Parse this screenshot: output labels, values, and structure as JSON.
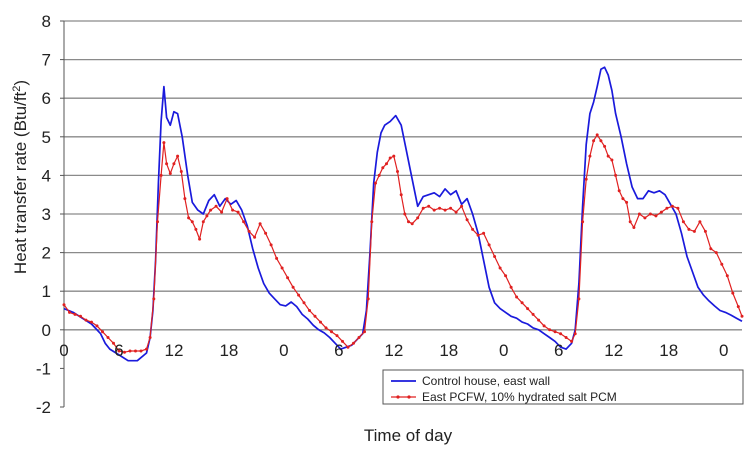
{
  "chart_data": {
    "type": "line",
    "title": "",
    "xlabel": "Time of day",
    "ylabel": "Heat transfer rate (Btu/ft²)",
    "ylabel_main": "Heat transfer rate (Btu/ft",
    "ylabel_sup": "2",
    "ylabel_end": ")",
    "xlim": [
      0,
      74
    ],
    "ylim": [
      -2,
      8
    ],
    "yticks": [
      "-2",
      "-1",
      "0",
      "1",
      "2",
      "3",
      "4",
      "5",
      "6",
      "7",
      "8"
    ],
    "xticks": [
      {
        "x": 0,
        "label": "0"
      },
      {
        "x": 6,
        "label": "6"
      },
      {
        "x": 12,
        "label": "12"
      },
      {
        "x": 18,
        "label": "18"
      },
      {
        "x": 24,
        "label": "0"
      },
      {
        "x": 30,
        "label": "6"
      },
      {
        "x": 36,
        "label": "12"
      },
      {
        "x": 42,
        "label": "18"
      },
      {
        "x": 48,
        "label": "0"
      },
      {
        "x": 54,
        "label": "6"
      },
      {
        "x": 60,
        "label": "12"
      },
      {
        "x": 66,
        "label": "18"
      },
      {
        "x": 72,
        "label": "0"
      }
    ],
    "grid": "horizontal",
    "legend_position": "bottom-right",
    "series": [
      {
        "name": "Control house, east wall",
        "color": "#1a1adc",
        "marker": "none",
        "points": [
          [
            0,
            0.55
          ],
          [
            1,
            0.45
          ],
          [
            2,
            0.3
          ],
          [
            3,
            0.15
          ],
          [
            4,
            -0.1
          ],
          [
            4.5,
            -0.35
          ],
          [
            5,
            -0.5
          ],
          [
            6,
            -0.65
          ],
          [
            7,
            -0.8
          ],
          [
            8,
            -0.8
          ],
          [
            9,
            -0.6
          ],
          [
            9.4,
            -0.2
          ],
          [
            9.7,
            0.5
          ],
          [
            10.0,
            1.8
          ],
          [
            10.3,
            3.8
          ],
          [
            10.6,
            5.4
          ],
          [
            10.9,
            6.3
          ],
          [
            11.2,
            5.5
          ],
          [
            11.6,
            5.3
          ],
          [
            12.0,
            5.65
          ],
          [
            12.4,
            5.6
          ],
          [
            12.9,
            5.0
          ],
          [
            13.5,
            4.0
          ],
          [
            14.0,
            3.3
          ],
          [
            14.6,
            3.1
          ],
          [
            15.2,
            3.0
          ],
          [
            15.8,
            3.35
          ],
          [
            16.4,
            3.5
          ],
          [
            17.0,
            3.2
          ],
          [
            17.6,
            3.4
          ],
          [
            18.2,
            3.25
          ],
          [
            18.8,
            3.35
          ],
          [
            19.4,
            3.1
          ],
          [
            20.0,
            2.7
          ],
          [
            20.6,
            2.1
          ],
          [
            21.2,
            1.6
          ],
          [
            21.8,
            1.2
          ],
          [
            22.4,
            0.95
          ],
          [
            23.0,
            0.8
          ],
          [
            23.6,
            0.65
          ],
          [
            24.2,
            0.62
          ],
          [
            24.8,
            0.72
          ],
          [
            25.4,
            0.6
          ],
          [
            26.0,
            0.4
          ],
          [
            26.6,
            0.28
          ],
          [
            27.2,
            0.12
          ],
          [
            27.8,
            0.0
          ],
          [
            28.4,
            -0.08
          ],
          [
            29.0,
            -0.2
          ],
          [
            29.6,
            -0.35
          ],
          [
            30.2,
            -0.5
          ],
          [
            30.8,
            -0.45
          ],
          [
            31.4,
            -0.4
          ],
          [
            32.0,
            -0.25
          ],
          [
            32.6,
            -0.1
          ],
          [
            33.0,
            0.5
          ],
          [
            33.4,
            2.0
          ],
          [
            33.8,
            3.8
          ],
          [
            34.2,
            4.6
          ],
          [
            34.6,
            5.1
          ],
          [
            35.0,
            5.3
          ],
          [
            35.6,
            5.4
          ],
          [
            36.2,
            5.55
          ],
          [
            36.8,
            5.3
          ],
          [
            37.4,
            4.6
          ],
          [
            38.0,
            3.9
          ],
          [
            38.6,
            3.2
          ],
          [
            39.2,
            3.45
          ],
          [
            39.8,
            3.5
          ],
          [
            40.4,
            3.55
          ],
          [
            41.0,
            3.45
          ],
          [
            41.6,
            3.65
          ],
          [
            42.2,
            3.5
          ],
          [
            42.8,
            3.6
          ],
          [
            43.4,
            3.25
          ],
          [
            44.0,
            3.4
          ],
          [
            44.6,
            3.0
          ],
          [
            45.2,
            2.5
          ],
          [
            45.8,
            1.8
          ],
          [
            46.4,
            1.1
          ],
          [
            47.0,
            0.7
          ],
          [
            47.6,
            0.55
          ],
          [
            48.2,
            0.45
          ],
          [
            48.8,
            0.35
          ],
          [
            49.4,
            0.3
          ],
          [
            50.0,
            0.2
          ],
          [
            50.6,
            0.15
          ],
          [
            51.2,
            0.05
          ],
          [
            51.8,
            0.0
          ],
          [
            52.4,
            -0.1
          ],
          [
            53.0,
            -0.2
          ],
          [
            53.6,
            -0.3
          ],
          [
            54.2,
            -0.45
          ],
          [
            54.8,
            -0.5
          ],
          [
            55.4,
            -0.35
          ],
          [
            55.8,
            0.0
          ],
          [
            56.2,
            1.2
          ],
          [
            56.6,
            3.2
          ],
          [
            57.0,
            4.8
          ],
          [
            57.4,
            5.6
          ],
          [
            57.8,
            5.9
          ],
          [
            58.2,
            6.3
          ],
          [
            58.6,
            6.75
          ],
          [
            59.0,
            6.8
          ],
          [
            59.4,
            6.6
          ],
          [
            59.8,
            6.2
          ],
          [
            60.2,
            5.6
          ],
          [
            60.8,
            5.0
          ],
          [
            61.4,
            4.3
          ],
          [
            62.0,
            3.7
          ],
          [
            62.6,
            3.4
          ],
          [
            63.2,
            3.4
          ],
          [
            63.8,
            3.6
          ],
          [
            64.4,
            3.55
          ],
          [
            65.0,
            3.6
          ],
          [
            65.6,
            3.5
          ],
          [
            66.2,
            3.25
          ],
          [
            66.8,
            3.0
          ],
          [
            67.4,
            2.5
          ],
          [
            68.0,
            1.9
          ],
          [
            68.6,
            1.5
          ],
          [
            69.2,
            1.1
          ],
          [
            69.8,
            0.9
          ],
          [
            70.4,
            0.75
          ],
          [
            71.0,
            0.62
          ],
          [
            71.6,
            0.5
          ],
          [
            72.2,
            0.45
          ],
          [
            72.8,
            0.38
          ],
          [
            73.4,
            0.3
          ],
          [
            74.0,
            0.22
          ]
        ]
      },
      {
        "name": "East PCFW, 10% hydrated salt PCM",
        "color": "#e02020",
        "marker": "dot",
        "points": [
          [
            0,
            0.65
          ],
          [
            0.6,
            0.45
          ],
          [
            1.2,
            0.4
          ],
          [
            1.8,
            0.35
          ],
          [
            2.4,
            0.25
          ],
          [
            3.0,
            0.2
          ],
          [
            3.6,
            0.1
          ],
          [
            4.2,
            -0.05
          ],
          [
            4.8,
            -0.2
          ],
          [
            5.4,
            -0.35
          ],
          [
            6.0,
            -0.55
          ],
          [
            6.6,
            -0.58
          ],
          [
            7.2,
            -0.55
          ],
          [
            7.8,
            -0.55
          ],
          [
            8.4,
            -0.55
          ],
          [
            9.0,
            -0.5
          ],
          [
            9.4,
            -0.2
          ],
          [
            9.8,
            0.8
          ],
          [
            10.2,
            2.8
          ],
          [
            10.6,
            4.0
          ],
          [
            10.9,
            4.85
          ],
          [
            11.2,
            4.3
          ],
          [
            11.6,
            4.05
          ],
          [
            12.0,
            4.3
          ],
          [
            12.4,
            4.5
          ],
          [
            12.8,
            4.1
          ],
          [
            13.2,
            3.4
          ],
          [
            13.6,
            2.9
          ],
          [
            14.0,
            2.8
          ],
          [
            14.4,
            2.6
          ],
          [
            14.8,
            2.35
          ],
          [
            15.2,
            2.8
          ],
          [
            15.6,
            2.95
          ],
          [
            16.0,
            3.1
          ],
          [
            16.6,
            3.2
          ],
          [
            17.2,
            3.05
          ],
          [
            17.8,
            3.4
          ],
          [
            18.4,
            3.1
          ],
          [
            19.0,
            3.05
          ],
          [
            19.6,
            2.8
          ],
          [
            20.2,
            2.55
          ],
          [
            20.8,
            2.4
          ],
          [
            21.4,
            2.75
          ],
          [
            22.0,
            2.5
          ],
          [
            22.6,
            2.2
          ],
          [
            23.2,
            1.85
          ],
          [
            23.8,
            1.6
          ],
          [
            24.4,
            1.35
          ],
          [
            25.0,
            1.1
          ],
          [
            25.6,
            0.9
          ],
          [
            26.2,
            0.7
          ],
          [
            26.8,
            0.5
          ],
          [
            27.4,
            0.35
          ],
          [
            28.0,
            0.2
          ],
          [
            28.6,
            0.05
          ],
          [
            29.2,
            -0.05
          ],
          [
            29.8,
            -0.15
          ],
          [
            30.4,
            -0.3
          ],
          [
            31.0,
            -0.45
          ],
          [
            31.6,
            -0.35
          ],
          [
            32.2,
            -0.2
          ],
          [
            32.8,
            -0.05
          ],
          [
            33.2,
            0.8
          ],
          [
            33.6,
            2.8
          ],
          [
            34.0,
            3.8
          ],
          [
            34.4,
            4.0
          ],
          [
            34.8,
            4.2
          ],
          [
            35.2,
            4.3
          ],
          [
            35.6,
            4.45
          ],
          [
            36.0,
            4.5
          ],
          [
            36.4,
            4.1
          ],
          [
            36.8,
            3.5
          ],
          [
            37.2,
            3.0
          ],
          [
            37.6,
            2.8
          ],
          [
            38.0,
            2.75
          ],
          [
            38.6,
            2.9
          ],
          [
            39.2,
            3.15
          ],
          [
            39.8,
            3.2
          ],
          [
            40.4,
            3.1
          ],
          [
            41.0,
            3.15
          ],
          [
            41.6,
            3.1
          ],
          [
            42.2,
            3.15
          ],
          [
            42.8,
            3.05
          ],
          [
            43.4,
            3.2
          ],
          [
            44.0,
            2.85
          ],
          [
            44.6,
            2.6
          ],
          [
            45.2,
            2.45
          ],
          [
            45.8,
            2.5
          ],
          [
            46.4,
            2.2
          ],
          [
            47.0,
            1.9
          ],
          [
            47.6,
            1.6
          ],
          [
            48.2,
            1.4
          ],
          [
            48.8,
            1.1
          ],
          [
            49.4,
            0.85
          ],
          [
            50.0,
            0.7
          ],
          [
            50.6,
            0.55
          ],
          [
            51.2,
            0.4
          ],
          [
            51.8,
            0.25
          ],
          [
            52.4,
            0.1
          ],
          [
            53.0,
            0.0
          ],
          [
            53.6,
            -0.05
          ],
          [
            54.2,
            -0.1
          ],
          [
            54.8,
            -0.2
          ],
          [
            55.4,
            -0.3
          ],
          [
            55.8,
            -0.1
          ],
          [
            56.2,
            0.8
          ],
          [
            56.6,
            2.8
          ],
          [
            57.0,
            3.9
          ],
          [
            57.4,
            4.5
          ],
          [
            57.8,
            4.9
          ],
          [
            58.2,
            5.05
          ],
          [
            58.6,
            4.9
          ],
          [
            59.0,
            4.75
          ],
          [
            59.4,
            4.5
          ],
          [
            59.8,
            4.4
          ],
          [
            60.2,
            4.0
          ],
          [
            60.6,
            3.6
          ],
          [
            61.0,
            3.4
          ],
          [
            61.4,
            3.3
          ],
          [
            61.8,
            2.8
          ],
          [
            62.2,
            2.65
          ],
          [
            62.8,
            3.0
          ],
          [
            63.4,
            2.9
          ],
          [
            64.0,
            3.0
          ],
          [
            64.6,
            2.95
          ],
          [
            65.2,
            3.05
          ],
          [
            65.8,
            3.15
          ],
          [
            66.4,
            3.2
          ],
          [
            67.0,
            3.15
          ],
          [
            67.6,
            2.8
          ],
          [
            68.2,
            2.6
          ],
          [
            68.8,
            2.55
          ],
          [
            69.4,
            2.8
          ],
          [
            70.0,
            2.55
          ],
          [
            70.6,
            2.1
          ],
          [
            71.2,
            2.0
          ],
          [
            71.8,
            1.7
          ],
          [
            72.4,
            1.4
          ],
          [
            73.0,
            0.95
          ],
          [
            73.6,
            0.6
          ],
          [
            74.0,
            0.35
          ]
        ]
      }
    ]
  }
}
